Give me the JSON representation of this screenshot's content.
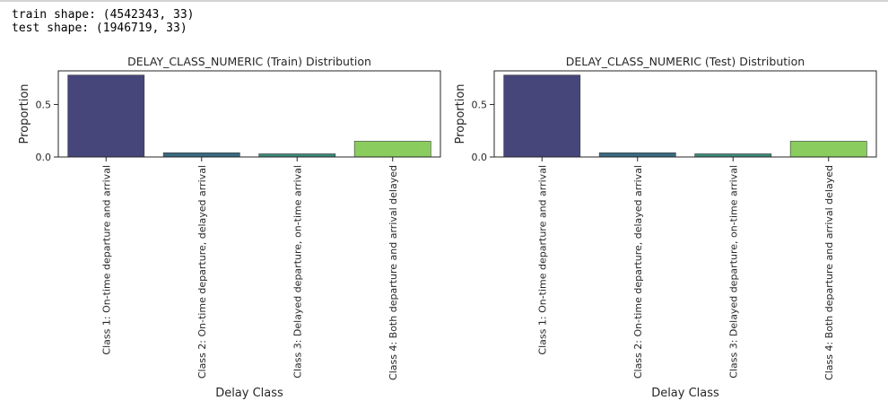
{
  "output": {
    "lines": [
      "train shape: (4542343, 33)",
      "test shape: (1946719, 33)"
    ]
  },
  "chart_data": [
    {
      "type": "bar",
      "title": "DELAY_CLASS_NUMERIC (Train) Distribution",
      "xlabel": "Delay Class",
      "ylabel": "Proportion",
      "categories": [
        "Class 1: On-time departure and arrival",
        "Class 2: On-time departure, delayed arrival",
        "Class 3: Delayed departure, on-time arrival",
        "Class 4: Both departure and arrival delayed"
      ],
      "values": [
        0.78,
        0.04,
        0.03,
        0.15
      ],
      "colors": [
        "#46467a",
        "#3b6a80",
        "#3c8a78",
        "#8acd5e"
      ],
      "yticks": [
        "0.0",
        "0.5"
      ],
      "ylim": [
        0,
        0.82
      ],
      "grid": false
    },
    {
      "type": "bar",
      "title": "DELAY_CLASS_NUMERIC (Test) Distribution",
      "xlabel": "Delay Class",
      "ylabel": "Proportion",
      "categories": [
        "Class 1: On-time departure and arrival",
        "Class 2: On-time departure, delayed arrival",
        "Class 3: Delayed departure, on-time arrival",
        "Class 4: Both departure and arrival delayed"
      ],
      "values": [
        0.78,
        0.04,
        0.03,
        0.15
      ],
      "colors": [
        "#46467a",
        "#3b6a80",
        "#3c8a78",
        "#8acd5e"
      ],
      "yticks": [
        "0.0",
        "0.5"
      ],
      "ylim": [
        0,
        0.82
      ],
      "grid": false
    }
  ]
}
